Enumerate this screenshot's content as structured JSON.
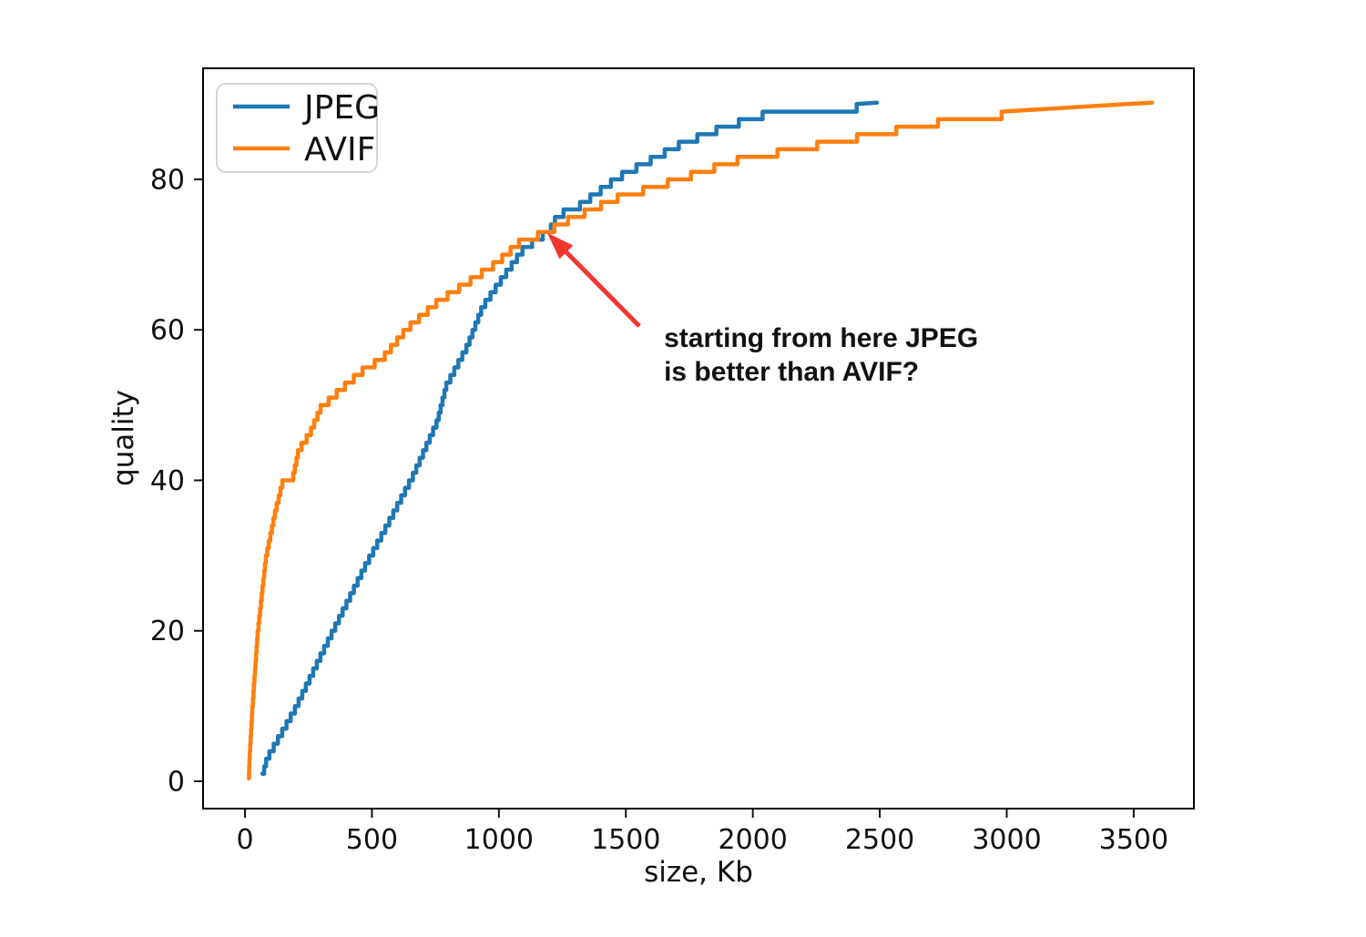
{
  "chart_data": {
    "type": "line",
    "title": "",
    "xlabel": "size, Kb",
    "ylabel": "quality",
    "xlim": [
      -165,
      3737
    ],
    "ylim": [
      -3.63,
      94.76
    ],
    "xticks": [
      0,
      500,
      1000,
      1500,
      2000,
      2500,
      3000,
      3500
    ],
    "yticks": [
      0,
      20,
      40,
      60,
      80
    ],
    "grid": false,
    "legend_position": "upper-left",
    "series": [
      {
        "name": "JPEG",
        "color": "#1f77b4",
        "points": [
          [
            68,
            1
          ],
          [
            86,
            3.4
          ],
          [
            197,
            10
          ],
          [
            316,
            18.3
          ],
          [
            470,
            28.8
          ],
          [
            567,
            34.9
          ],
          [
            660,
            40.9
          ],
          [
            757,
            48.2
          ],
          [
            793,
            53
          ],
          [
            875,
            58.2
          ],
          [
            936,
            63.5
          ],
          [
            1018,
            67.5
          ],
          [
            1097,
            71.2
          ],
          [
            1198,
            73.6
          ],
          [
            1234,
            75.8
          ],
          [
            1295,
            76.4
          ],
          [
            1474,
            80.8
          ],
          [
            1581,
            82.7
          ],
          [
            1714,
            85.1
          ],
          [
            1879,
            87.3
          ],
          [
            2048,
            89.1
          ],
          [
            2489,
            90.2
          ]
        ]
      },
      {
        "name": "AVIF",
        "color": "#ff7f0e",
        "points": [
          [
            15,
            0.4
          ],
          [
            18,
            3.4
          ],
          [
            29,
            10
          ],
          [
            50,
            20
          ],
          [
            82,
            30
          ],
          [
            118,
            36
          ],
          [
            147,
            40
          ],
          [
            190,
            41
          ],
          [
            212,
            44.5
          ],
          [
            255,
            46.6
          ],
          [
            298,
            50
          ],
          [
            380,
            52.6
          ],
          [
            470,
            55.2
          ],
          [
            541,
            56.6
          ],
          [
            638,
            60.6
          ],
          [
            757,
            64.1
          ],
          [
            875,
            66.7
          ],
          [
            990,
            69.3
          ],
          [
            1079,
            72
          ],
          [
            1198,
            73.6
          ],
          [
            1259,
            74.8
          ],
          [
            1474,
            78.1
          ],
          [
            1610,
            79.4
          ],
          [
            1940,
            83
          ],
          [
            2395,
            85.9
          ],
          [
            2704,
            87.9
          ],
          [
            2980,
            89
          ],
          [
            3572,
            90.2
          ]
        ]
      }
    ],
    "annotation": {
      "text_lines": [
        "starting from here JPEG",
        "is better than AVIF?"
      ],
      "color": "#f0372f",
      "text_pos": {
        "size": 1650,
        "quality": 57.7
      },
      "arrow": {
        "from": {
          "size": 1553,
          "quality": 60.5
        },
        "to": {
          "size": 1190,
          "quality": 72.9
        }
      }
    }
  }
}
